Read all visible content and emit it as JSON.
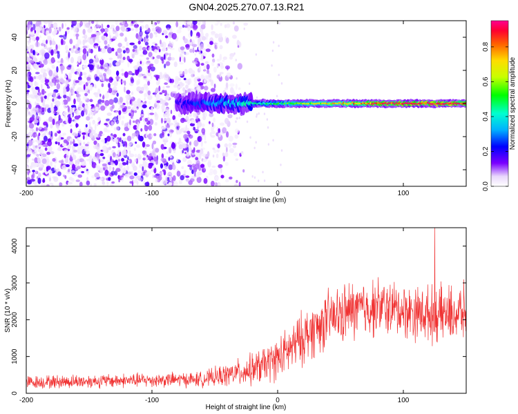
{
  "title": "GN04.2025.270.07.13.R21",
  "chart_data": [
    {
      "type": "heatmap",
      "title": "GN04.2025.270.07.13.R21",
      "xlabel": "Height of straight line (km)",
      "ylabel": "Frequency (Hz)",
      "xlim": [
        -200,
        150
      ],
      "ylim": [
        -50,
        50
      ],
      "xticks": [
        -200,
        -100,
        0,
        100
      ],
      "xtick_labels": [
        "-200",
        "-100",
        "0",
        "100"
      ],
      "yticks": [
        -40,
        -20,
        0,
        20,
        40
      ],
      "ytick_labels": [
        "-40",
        "-20",
        "0",
        "20",
        "40"
      ],
      "description_of_signal": {
        "noise_region_x": [
          -200,
          -30
        ],
        "signal_start_x": -80,
        "signal_freq_hz": 0,
        "strong_signal_from_x": 10
      },
      "colorbar": {
        "label": "Normalized spectral amplitude",
        "range": [
          0.0,
          0.95
        ],
        "ticks": [
          0.0,
          0.2,
          0.4,
          0.6,
          0.8
        ],
        "tick_labels": [
          "0.0",
          "0.2",
          "0.4",
          "0.6",
          "0.8"
        ],
        "colormap": "hsv-reversed (violet low to red high)"
      }
    },
    {
      "type": "line",
      "xlabel": "Height of straight line (km)",
      "ylabel": "SNR (10 * v/v)",
      "xlim": [
        -200,
        150
      ],
      "ylim": [
        0,
        4500
      ],
      "xticks": [
        -200,
        -100,
        0,
        100
      ],
      "xtick_labels": [
        "-200",
        "-100",
        "0",
        "100"
      ],
      "yticks": [
        0,
        1000,
        2000,
        3000,
        4000
      ],
      "ytick_labels": [
        "0",
        "1000",
        "2000",
        "3000",
        "4000"
      ],
      "color": "#f03232",
      "trend": {
        "x": [
          -200,
          -150,
          -100,
          -60,
          -40,
          -20,
          -5,
          5,
          15,
          25,
          40,
          60,
          80,
          100,
          120,
          140,
          150
        ],
        "y": [
          300,
          330,
          360,
          380,
          500,
          650,
          850,
          1050,
          1350,
          1650,
          2000,
          2250,
          2350,
          2250,
          2150,
          2150,
          2200
        ]
      },
      "noise_amplitude": {
        "x": [
          -200,
          -60,
          -30,
          0,
          20,
          60,
          100,
          150
        ],
        "y": [
          220,
          250,
          450,
          700,
          900,
          1000,
          900,
          950
        ]
      },
      "max_peak": {
        "x": 125,
        "y": 4500
      }
    }
  ]
}
